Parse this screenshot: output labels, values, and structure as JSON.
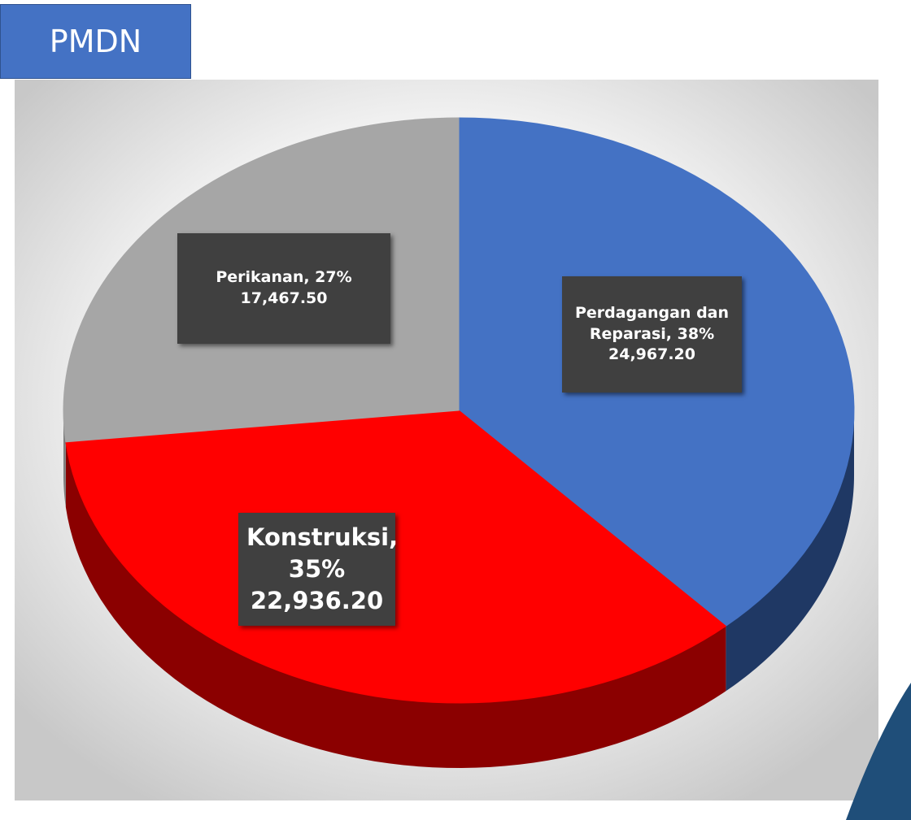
{
  "chart_data": {
    "type": "pie",
    "title": "PMDN",
    "data_labels": [
      "Perdagangan dan Reparasi, 38%",
      "Konstruksi, 35%",
      "Perikanan, 27%"
    ],
    "values": [
      24967.2,
      22936.2,
      17467.5
    ],
    "value_labels": [
      "24,967.20",
      "22,936.20",
      "17,467.50"
    ],
    "colors": [
      "#4472c4",
      "#ff0000",
      "#a6a6a6"
    ],
    "side_colors": [
      "#1f3864",
      "#8b0000",
      "#7f7f7f"
    ]
  }
}
